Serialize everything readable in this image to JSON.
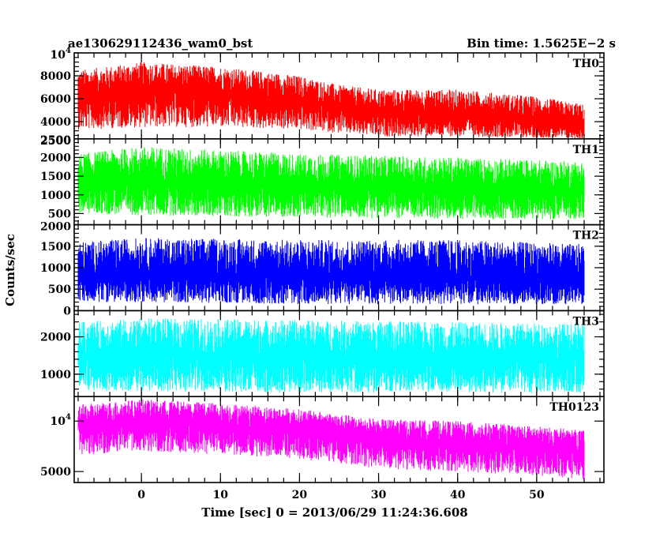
{
  "chart_data": {
    "type": "line",
    "title_left": "ae130629112436_wam0_bst",
    "title_right": "Bin time: 1.5625E−2 s",
    "xlabel": "Time [sec] 0 = 2013/06/29 11:24:36.608",
    "ylabel": "Counts/sec",
    "xlim": [
      -8.5,
      58.5
    ],
    "x_ticks": [
      0,
      10,
      20,
      30,
      40,
      50
    ],
    "x_tick_labels": [
      "0",
      "10",
      "20",
      "30",
      "40",
      "50"
    ],
    "data_range": [
      -8,
      56
    ],
    "grid": false,
    "panels": [
      {
        "label": "TH0",
        "color": "#ff0000",
        "ylim": [
          2500,
          10000
        ],
        "y_ticks": [
          4000,
          6000,
          8000
        ],
        "y_tick_labels": [
          "4000",
          "6000",
          "8000"
        ],
        "top_label": "10^4",
        "bottom_label": "2500",
        "envelope": {
          "x": [
            -8,
            0,
            10,
            20,
            25,
            30,
            40,
            50,
            56
          ],
          "mean": [
            6000,
            6800,
            6500,
            5800,
            5300,
            4800,
            4700,
            4000,
            3500
          ],
          "upper": [
            8500,
            9200,
            8800,
            8000,
            7200,
            6800,
            6800,
            6200,
            5500
          ],
          "lower": [
            3300,
            3500,
            3500,
            3300,
            3000,
            2700,
            2700,
            2600,
            2500
          ]
        }
      },
      {
        "label": "TH1",
        "color": "#00ff00",
        "ylim": [
          200,
          2500
        ],
        "y_ticks": [
          500,
          1000,
          1500,
          2000
        ],
        "y_tick_labels": [
          "500",
          "1000",
          "1500",
          "2000"
        ],
        "top_label": "2500",
        "bottom_label": "",
        "envelope": {
          "x": [
            -8,
            0,
            20,
            40,
            56
          ],
          "mean": [
            1300,
            1350,
            1250,
            1150,
            1100
          ],
          "upper": [
            2100,
            2300,
            2100,
            2000,
            1900
          ],
          "lower": [
            500,
            450,
            400,
            350,
            350
          ]
        }
      },
      {
        "label": "TH2",
        "color": "#0000ff",
        "ylim": [
          0,
          2000
        ],
        "y_ticks": [
          0,
          500,
          1000,
          1500
        ],
        "y_tick_labels": [
          "0",
          "500",
          "1000",
          "1500"
        ],
        "top_label": "2000",
        "bottom_label": "",
        "envelope": {
          "x": [
            -8,
            0,
            20,
            40,
            56
          ],
          "mean": [
            800,
            850,
            800,
            800,
            750
          ],
          "upper": [
            1600,
            1700,
            1650,
            1650,
            1550
          ],
          "lower": [
            200,
            200,
            150,
            150,
            150
          ]
        }
      },
      {
        "label": "TH3",
        "color": "#00ffff",
        "ylim": [
          400,
          2700
        ],
        "y_ticks": [
          1000,
          2000
        ],
        "y_tick_labels": [
          "1000",
          "2000"
        ],
        "top_label": "",
        "bottom_label": "",
        "envelope": {
          "x": [
            -8,
            0,
            20,
            40,
            56
          ],
          "mean": [
            1450,
            1500,
            1450,
            1400,
            1400
          ],
          "upper": [
            2400,
            2500,
            2450,
            2400,
            2350
          ],
          "lower": [
            550,
            550,
            500,
            500,
            500
          ]
        }
      },
      {
        "label": "TH0123",
        "color": "#ff00ff",
        "ylim": [
          4300,
          14000
        ],
        "log": true,
        "y_ticks": [
          5000,
          10000
        ],
        "y_tick_labels": [
          "5000",
          "10^4"
        ],
        "top_label": "",
        "bottom_label": "",
        "envelope": {
          "x": [
            -8,
            0,
            10,
            20,
            25,
            30,
            40,
            50,
            56
          ],
          "mean": [
            9200,
            9800,
            9300,
            8700,
            8200,
            7600,
            7300,
            6800,
            6500
          ],
          "upper": [
            12500,
            13500,
            12800,
            11800,
            11000,
            10300,
            10000,
            9300,
            8800
          ],
          "lower": [
            6200,
            6600,
            6300,
            5900,
            5600,
            5200,
            5000,
            4700,
            4500
          ]
        }
      }
    ]
  }
}
